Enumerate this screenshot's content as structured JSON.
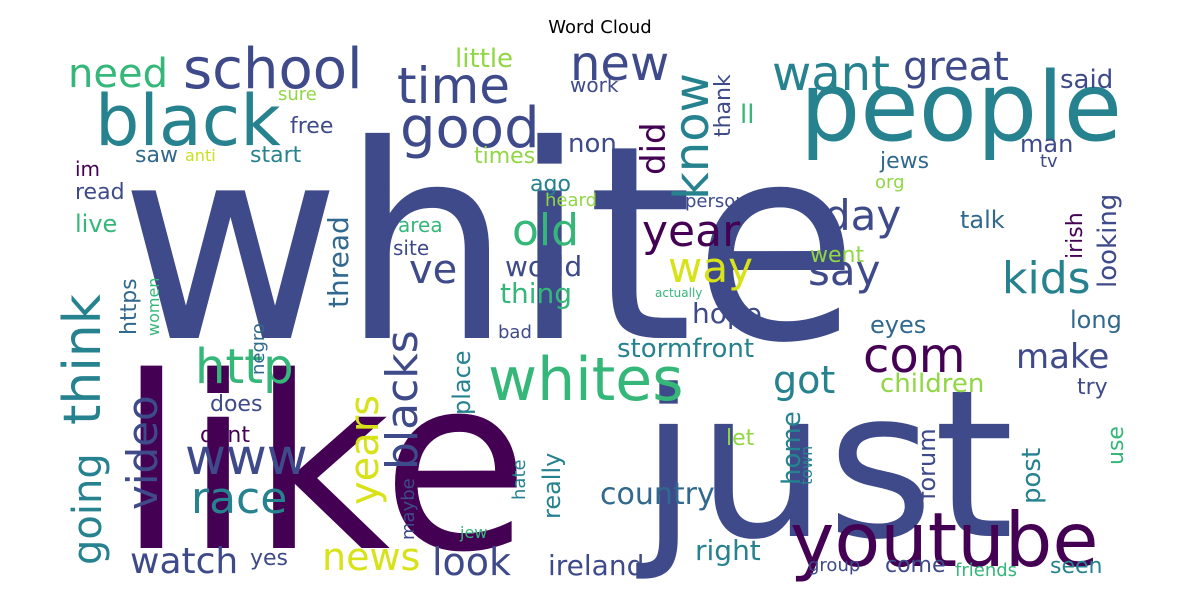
{
  "chart_data": {
    "type": "wordcloud",
    "title": "Word Cloud",
    "colors": {
      "purple": "#440154",
      "indigo": "#3e4a89",
      "blue": "#31688e",
      "teal": "#26828e",
      "green": "#35b779",
      "lime": "#90d743",
      "yellow": "#d8e219",
      "paleyellow": "#c8e020"
    },
    "words": [
      {
        "text": "white"
      },
      {
        "text": "like"
      },
      {
        "text": "just"
      },
      {
        "text": "people"
      },
      {
        "text": "youtube"
      },
      {
        "text": "black"
      },
      {
        "text": "whites"
      },
      {
        "text": "good"
      },
      {
        "text": "school"
      },
      {
        "text": "time"
      },
      {
        "text": "think"
      },
      {
        "text": "new"
      },
      {
        "text": "know"
      },
      {
        "text": "want"
      },
      {
        "text": "com"
      },
      {
        "text": "www"
      },
      {
        "text": "http"
      },
      {
        "text": "kids"
      },
      {
        "text": "great"
      },
      {
        "text": "day"
      },
      {
        "text": "year"
      },
      {
        "text": "say"
      },
      {
        "text": "way"
      },
      {
        "text": "old"
      },
      {
        "text": "race"
      },
      {
        "text": "blacks"
      },
      {
        "text": "video"
      },
      {
        "text": "going"
      },
      {
        "text": "need"
      },
      {
        "text": "years"
      },
      {
        "text": "ve"
      },
      {
        "text": "got"
      },
      {
        "text": "news"
      },
      {
        "text": "look"
      },
      {
        "text": "watch"
      },
      {
        "text": "make"
      },
      {
        "text": "did"
      },
      {
        "text": "country"
      },
      {
        "text": "ireland"
      },
      {
        "text": "right"
      },
      {
        "text": "thread"
      },
      {
        "text": "world"
      },
      {
        "text": "thing"
      },
      {
        "text": "hope"
      },
      {
        "text": "stormfront"
      },
      {
        "text": "children"
      },
      {
        "text": "looking"
      },
      {
        "text": "post"
      },
      {
        "text": "forum"
      },
      {
        "text": "home"
      },
      {
        "text": "place"
      },
      {
        "text": "really"
      },
      {
        "text": "little"
      },
      {
        "text": "said"
      },
      {
        "text": "thank"
      },
      {
        "text": "non"
      },
      {
        "text": "ll"
      },
      {
        "text": "man"
      },
      {
        "text": "times"
      },
      {
        "text": "free"
      },
      {
        "text": "start"
      },
      {
        "text": "saw"
      },
      {
        "text": "read"
      },
      {
        "text": "live"
      },
      {
        "text": "https"
      },
      {
        "text": "jews"
      },
      {
        "text": "irish"
      },
      {
        "text": "talk"
      },
      {
        "text": "went"
      },
      {
        "text": "long"
      },
      {
        "text": "eyes"
      },
      {
        "text": "try"
      },
      {
        "text": "use"
      },
      {
        "text": "let"
      },
      {
        "text": "does"
      },
      {
        "text": "dont"
      },
      {
        "text": "maybe"
      },
      {
        "text": "hate"
      },
      {
        "text": "bad"
      },
      {
        "text": "negro"
      },
      {
        "text": "women"
      },
      {
        "text": "seen"
      },
      {
        "text": "come"
      },
      {
        "text": "yes"
      },
      {
        "text": "group"
      },
      {
        "text": "friends"
      },
      {
        "text": "town"
      },
      {
        "text": "person"
      },
      {
        "text": "site"
      },
      {
        "text": "area"
      },
      {
        "text": "ago"
      },
      {
        "text": "heard"
      },
      {
        "text": "work"
      },
      {
        "text": "sure"
      },
      {
        "text": "im"
      },
      {
        "text": "anti"
      },
      {
        "text": "org"
      },
      {
        "text": "tv"
      },
      {
        "text": "jew"
      },
      {
        "text": "actually"
      }
    ]
  }
}
